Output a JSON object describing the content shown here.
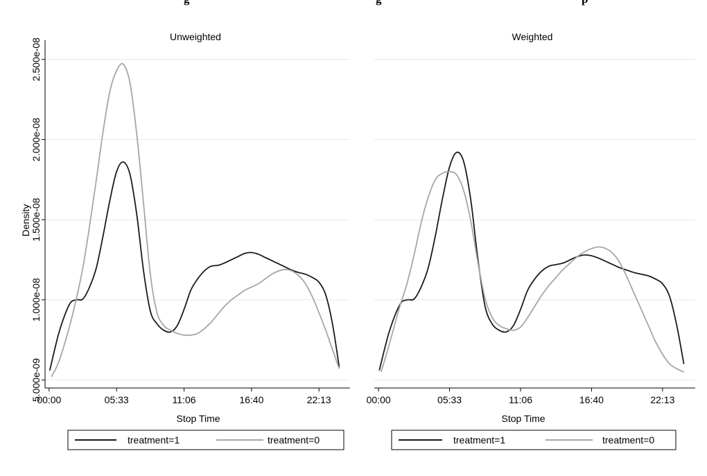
{
  "figure": {
    "title_visible": "g",
    "title_visible_2": "g",
    "title_visible_3": "p"
  },
  "chart_data": [
    {
      "type": "line",
      "title": "Unweighted",
      "xlabel": "Stop Time",
      "ylabel": "Density",
      "xlim": [
        -1200,
        89200
      ],
      "ylim": [
        4.5e-09,
        2.62e-08
      ],
      "x_ticks": [
        0,
        20000,
        40000,
        60000,
        80000
      ],
      "x_tick_labels": [
        "00:00",
        "05:33",
        "11:06",
        "16:40",
        "22:13"
      ],
      "y_ticks": [
        5e-09,
        1e-08,
        1.5e-08,
        2e-08,
        2.5e-08
      ],
      "y_tick_labels": [
        "5.000e-09",
        "1.000e-08",
        "1.500e-08",
        "2.000e-08",
        "2.500e-08"
      ],
      "grid": true,
      "legend_placement": "bottom",
      "series": [
        {
          "name": "treatment=1",
          "color": "#1a1a1a",
          "x": [
            200,
            3000,
            6000,
            8000,
            10000,
            12000,
            14000,
            16000,
            18000,
            20000,
            22000,
            24000,
            26000,
            28000,
            30000,
            32000,
            34000,
            36000,
            38000,
            40000,
            42000,
            44000,
            46000,
            48000,
            50000,
            52000,
            54000,
            56000,
            58000,
            60000,
            62000,
            64000,
            66000,
            68000,
            70000,
            72000,
            74000,
            76000,
            78000,
            80000,
            82000,
            84000,
            86000
          ],
          "y": [
            5.6e-09,
            8e-09,
            9.7e-09,
            1e-08,
            1.005e-08,
            1.08e-08,
            1.2e-08,
            1.4e-08,
            1.62e-08,
            1.8e-08,
            1.86e-08,
            1.78e-08,
            1.53e-08,
            1.18e-08,
            9.3e-09,
            8.5e-09,
            8.1e-09,
            8e-09,
            8.4e-09,
            9.4e-09,
            1.06e-08,
            1.13e-08,
            1.18e-08,
            1.21e-08,
            1.215e-08,
            1.23e-08,
            1.25e-08,
            1.27e-08,
            1.29e-08,
            1.295e-08,
            1.285e-08,
            1.265e-08,
            1.245e-08,
            1.225e-08,
            1.205e-08,
            1.185e-08,
            1.17e-08,
            1.16e-08,
            1.14e-08,
            1.11e-08,
            1.03e-08,
            8.5e-09,
            5.8e-09
          ]
        },
        {
          "name": "treatment=0",
          "color": "#a6a6a6",
          "x": [
            700,
            3000,
            6000,
            8000,
            10000,
            12000,
            14000,
            16000,
            18000,
            20000,
            22000,
            24000,
            26000,
            28000,
            30000,
            32000,
            34000,
            36000,
            38000,
            40000,
            42000,
            44000,
            46000,
            48000,
            50000,
            52000,
            54000,
            56000,
            58000,
            60000,
            62000,
            64000,
            66000,
            68000,
            70000,
            72000,
            74000,
            76000,
            78000,
            80000,
            82000,
            84000,
            86000
          ],
          "y": [
            5.2e-09,
            6.2e-09,
            8.3e-09,
            1e-08,
            1.2e-08,
            1.46e-08,
            1.75e-08,
            2.05e-08,
            2.3e-08,
            2.43e-08,
            2.47e-08,
            2.35e-08,
            2.03e-08,
            1.6e-08,
            1.16e-08,
            9.2e-09,
            8.4e-09,
            8.1e-09,
            7.9e-09,
            7.8e-09,
            7.8e-09,
            7.9e-09,
            8.2e-09,
            8.6e-09,
            9.1e-09,
            9.6e-09,
            1e-08,
            1.03e-08,
            1.06e-08,
            1.08e-08,
            1.1e-08,
            1.13e-08,
            1.16e-08,
            1.18e-08,
            1.19e-08,
            1.18e-08,
            1.15e-08,
            1.1e-08,
            1.02e-08,
            9.2e-09,
            8.1e-09,
            6.9e-09,
            5.7e-09
          ]
        }
      ]
    },
    {
      "type": "line",
      "title": "Weighted",
      "xlabel": "Stop Time",
      "ylabel": "",
      "xlim": [
        -1200,
        89200
      ],
      "ylim": [
        4.5e-09,
        2.62e-08
      ],
      "x_ticks": [
        0,
        20000,
        40000,
        60000,
        80000
      ],
      "x_tick_labels": [
        "00:00",
        "05:33",
        "11:06",
        "16:40",
        "22:13"
      ],
      "y_ticks": [
        5e-09,
        1e-08,
        1.5e-08,
        2e-08,
        2.5e-08
      ],
      "y_tick_labels": [],
      "grid": true,
      "legend_placement": "bottom",
      "series": [
        {
          "name": "treatment=1",
          "color": "#1a1a1a",
          "x": [
            200,
            3000,
            6000,
            8000,
            10000,
            12000,
            14000,
            16000,
            18000,
            20000,
            22000,
            24000,
            26000,
            28000,
            30000,
            32000,
            34000,
            36000,
            38000,
            40000,
            42000,
            44000,
            46000,
            48000,
            50000,
            52000,
            54000,
            56000,
            58000,
            60000,
            62000,
            64000,
            66000,
            68000,
            70000,
            72000,
            74000,
            76000,
            78000,
            80000,
            82000,
            84000,
            86000
          ],
          "y": [
            5.6e-09,
            8e-09,
            9.7e-09,
            1e-08,
            1.005e-08,
            1.08e-08,
            1.2e-08,
            1.4e-08,
            1.63e-08,
            1.83e-08,
            1.92e-08,
            1.86e-08,
            1.62e-08,
            1.25e-08,
            9.6e-09,
            8.5e-09,
            8.1e-09,
            8e-09,
            8.4e-09,
            9.4e-09,
            1.06e-08,
            1.13e-08,
            1.18e-08,
            1.21e-08,
            1.22e-08,
            1.23e-08,
            1.25e-08,
            1.27e-08,
            1.28e-08,
            1.275e-08,
            1.26e-08,
            1.24e-08,
            1.22e-08,
            1.2e-08,
            1.185e-08,
            1.17e-08,
            1.16e-08,
            1.15e-08,
            1.13e-08,
            1.1e-08,
            1.02e-08,
            8.4e-09,
            6e-09
          ]
        },
        {
          "name": "treatment=0",
          "color": "#a6a6a6",
          "x": [
            700,
            3000,
            6000,
            8000,
            10000,
            12000,
            14000,
            16000,
            18000,
            20000,
            22000,
            24000,
            26000,
            28000,
            30000,
            32000,
            34000,
            36000,
            38000,
            40000,
            42000,
            44000,
            46000,
            48000,
            50000,
            52000,
            54000,
            56000,
            58000,
            60000,
            62000,
            64000,
            66000,
            68000,
            70000,
            72000,
            74000,
            76000,
            78000,
            80000,
            82000,
            84000,
            86000
          ],
          "y": [
            5.5e-09,
            7.2e-09,
            9.6e-09,
            1.1e-08,
            1.28e-08,
            1.48e-08,
            1.64e-08,
            1.75e-08,
            1.79e-08,
            1.8e-08,
            1.78e-08,
            1.68e-08,
            1.49e-08,
            1.23e-08,
            1.01e-08,
            8.9e-09,
            8.4e-09,
            8.2e-09,
            8.1e-09,
            8.3e-09,
            8.9e-09,
            9.6e-09,
            1.03e-08,
            1.09e-08,
            1.14e-08,
            1.19e-08,
            1.23e-08,
            1.27e-08,
            1.3e-08,
            1.32e-08,
            1.33e-08,
            1.32e-08,
            1.29e-08,
            1.23e-08,
            1.14e-08,
            1.04e-08,
            9.4e-09,
            8.4e-09,
            7.4e-09,
            6.6e-09,
            6e-09,
            5.7e-09,
            5.5e-09
          ]
        }
      ]
    }
  ]
}
